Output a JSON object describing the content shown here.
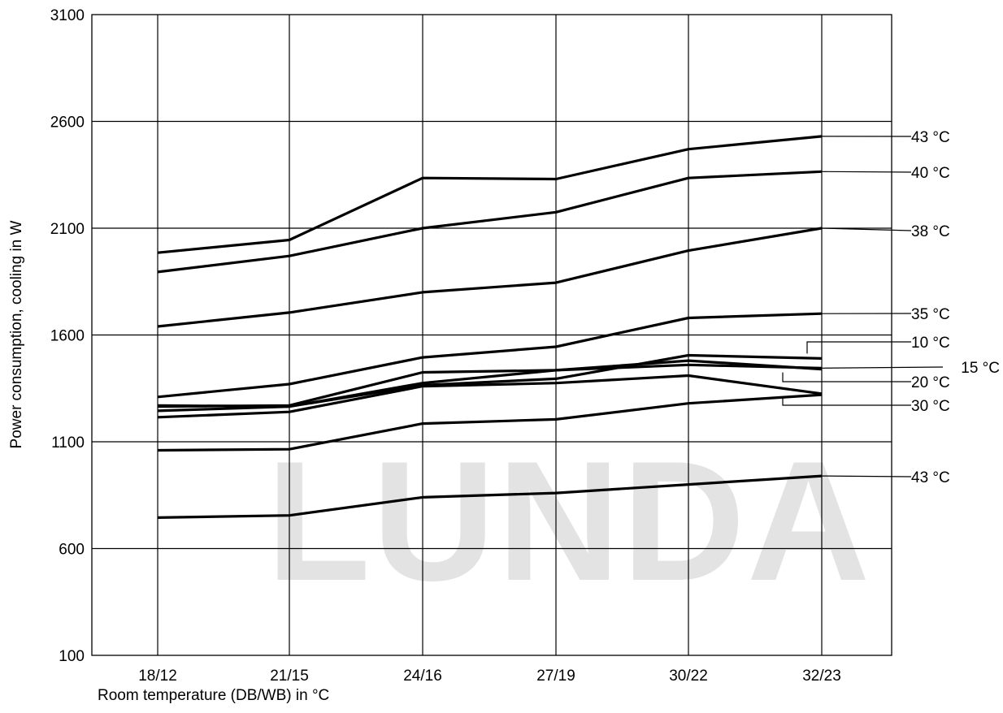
{
  "chart_data": {
    "type": "line",
    "title": "",
    "xlabel": "Room temperature (DB/WB) in °C",
    "ylabel": "Power consumption, cooling in W",
    "categories": [
      "18/12",
      "21/15",
      "24/16",
      "27/19",
      "30/22",
      "32/23"
    ],
    "ylim": [
      100,
      3100
    ],
    "yticks": [
      100,
      600,
      1100,
      1600,
      2100,
      2600,
      3100
    ],
    "grid": true,
    "colors": {
      "line": "#000000",
      "grid": "#000000",
      "watermark": "#e3e3e3"
    },
    "watermark": "LUNDA",
    "series": [
      {
        "name": "43 °C",
        "values": [
          1985,
          2045,
          2335,
          2330,
          2470,
          2530
        ]
      },
      {
        "name": "40 °C",
        "values": [
          1895,
          1970,
          2100,
          2175,
          2335,
          2365
        ]
      },
      {
        "name": "38 °C",
        "values": [
          1640,
          1705,
          1800,
          1845,
          1995,
          2100
        ]
      },
      {
        "name": "35 °C",
        "values": [
          1310,
          1370,
          1495,
          1545,
          1680,
          1700
        ]
      },
      {
        "name": "10 °C",
        "values": [
          1270,
          1265,
          1365,
          1395,
          1505,
          1490
        ]
      },
      {
        "name": "15 °C",
        "values": [
          1265,
          1270,
          1425,
          1435,
          1460,
          1445
        ]
      },
      {
        "name": "20 °C",
        "values": [
          1245,
          1265,
          1375,
          1435,
          1480,
          1440
        ]
      },
      {
        "name": "30 °C",
        "values": [
          1215,
          1240,
          1360,
          1375,
          1410,
          1325
        ]
      },
      {
        "name": "",
        "values": [
          1060,
          1065,
          1185,
          1205,
          1280,
          1320
        ]
      },
      {
        "name": "43 °C",
        "values": [
          745,
          755,
          840,
          860,
          900,
          940
        ]
      }
    ]
  }
}
